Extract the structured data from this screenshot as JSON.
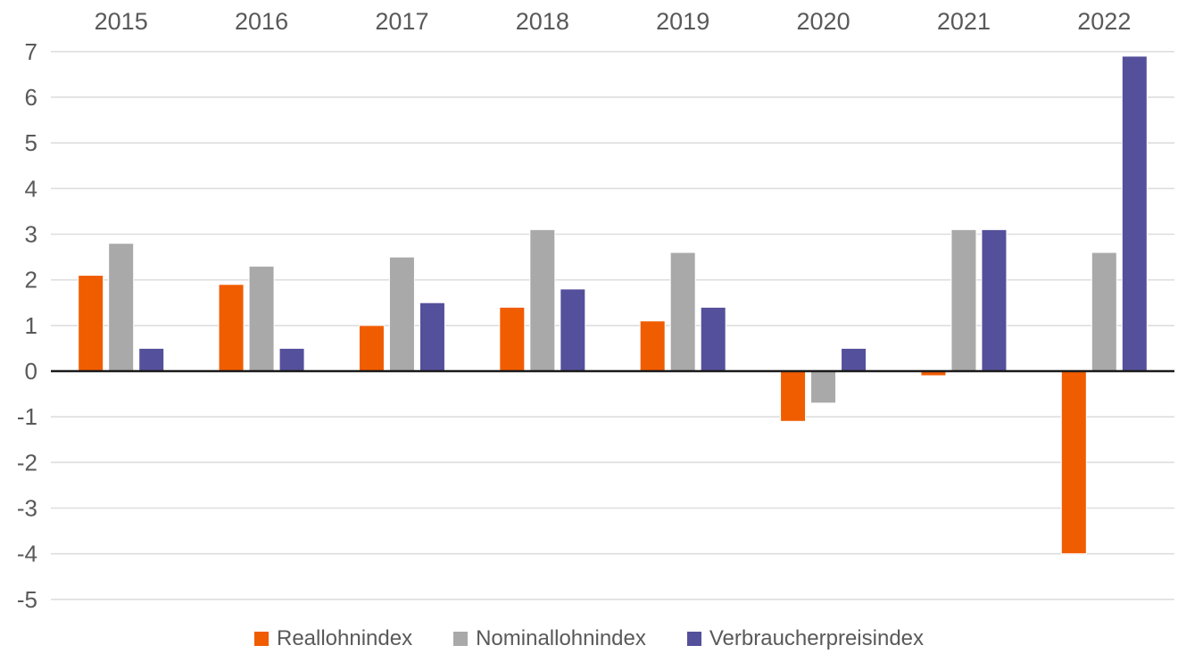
{
  "chart_data": {
    "type": "bar",
    "title": "",
    "xlabel": "",
    "ylabel": "",
    "categories": [
      "2015",
      "2016",
      "2017",
      "2018",
      "2019",
      "2020",
      "2021",
      "2022"
    ],
    "series": [
      {
        "name": "Reallohnindex",
        "color": "#F05C00",
        "values": [
          2.1,
          1.9,
          1.0,
          1.4,
          1.1,
          -1.1,
          -0.1,
          -4.0
        ]
      },
      {
        "name": "Nominallohnindex",
        "color": "#A9A9A9",
        "values": [
          2.8,
          2.3,
          2.5,
          3.1,
          2.6,
          -0.7,
          3.1,
          2.6
        ]
      },
      {
        "name": "Verbraucherpreisindex",
        "color": "#54509B",
        "values": [
          0.5,
          0.5,
          1.5,
          1.8,
          1.4,
          0.5,
          3.1,
          6.9
        ]
      }
    ],
    "ylim": [
      -5,
      7
    ],
    "yticks": [
      7,
      6,
      5,
      4,
      3,
      2,
      1,
      0,
      -1,
      -2,
      -3,
      -4,
      -5
    ],
    "grid": true,
    "x_axis_position": "top",
    "legend_position": "bottom",
    "gridline_color": "#dedede",
    "zero_line_color": "#1a1a1a",
    "text_color": "#595959"
  }
}
